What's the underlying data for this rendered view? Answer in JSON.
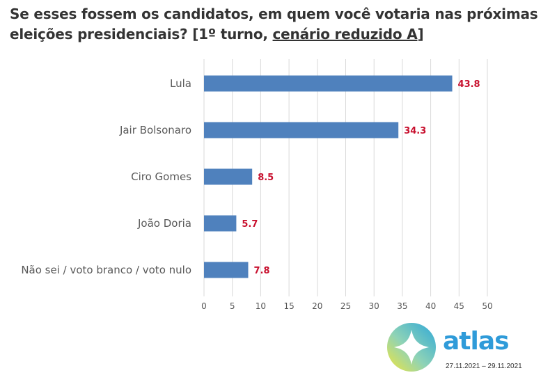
{
  "title": {
    "part1": "Se esses fossem os candidatos, em quem você votaria nas próximas eleições presidenciais? [1º turno, ",
    "underlined": "cenário reduzido A",
    "part2": "]"
  },
  "chart_data": {
    "type": "bar",
    "orientation": "horizontal",
    "categories": [
      "Lula",
      "Jair Bolsonaro",
      "Ciro Gomes",
      "João Doria",
      "Não sei / voto branco / voto nulo"
    ],
    "values": [
      43.8,
      34.3,
      8.5,
      5.7,
      7.8
    ],
    "value_labels": [
      "43.8",
      "34.3",
      "8.5",
      "5.7",
      "7.8"
    ],
    "xlim": [
      0,
      50
    ],
    "xticks": [
      "0",
      "5",
      "10",
      "15",
      "20",
      "25",
      "30",
      "35",
      "40",
      "45",
      "50"
    ],
    "grid": true,
    "bar_color": "#4f81bd",
    "label_color": "#c8102e"
  },
  "brand": {
    "name": "atlas",
    "date_range": "27.11.2021 – 29.11.2021"
  }
}
